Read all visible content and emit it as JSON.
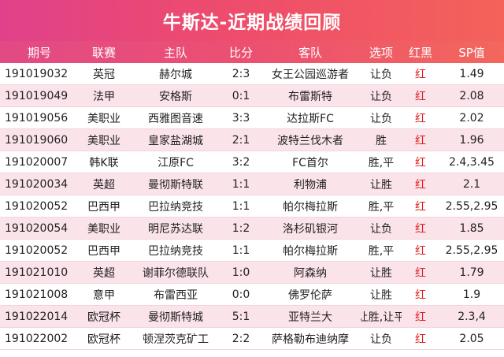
{
  "title": "牛斯达-近期战绩回顾",
  "columns": [
    "期号",
    "联赛",
    "主队",
    "比分",
    "客队",
    "选项",
    "红黑",
    "SP值"
  ],
  "rows": [
    [
      "191019032",
      "英冠",
      "赫尔城",
      "2:3",
      "女王公园巡游者",
      "让负",
      "红",
      "1.49"
    ],
    [
      "191019049",
      "法甲",
      "安格斯",
      "0:1",
      "布雷斯特",
      "让负",
      "红",
      "2.08"
    ],
    [
      "191019056",
      "美职业",
      "西雅图音速",
      "3:3",
      "达拉斯FC",
      "让负",
      "红",
      "2.02"
    ],
    [
      "191019060",
      "美职业",
      "皇家盐湖城",
      "2:1",
      "波特兰伐木者",
      "胜",
      "红",
      "1.96"
    ],
    [
      "191020007",
      "韩K联",
      "江原FC",
      "3:2",
      "FC首尔",
      "胜,平",
      "红",
      "2.4,3.45"
    ],
    [
      "191020034",
      "英超",
      "曼彻斯特联",
      "1:1",
      "利物浦",
      "让胜",
      "红",
      "2.1"
    ],
    [
      "191020052",
      "巴西甲",
      "巴拉纳竞技",
      "1:1",
      "帕尔梅拉斯",
      "胜,平",
      "红",
      "2.55,2.95"
    ],
    [
      "191020054",
      "美职业",
      "明尼苏达联",
      "1:2",
      "洛杉矶银河",
      "让负",
      "红",
      "1.85"
    ],
    [
      "191020052",
      "巴西甲",
      "巴拉纳竞技",
      "1:1",
      "帕尔梅拉斯",
      "胜,平",
      "红",
      "2.55,2.95"
    ],
    [
      "191021010",
      "英超",
      "谢菲尔德联队",
      "1:0",
      "阿森纳",
      "让胜",
      "红",
      "1.79"
    ],
    [
      "191021008",
      "意甲",
      "布雷西亚",
      "0:0",
      "佛罗伦萨",
      "让胜",
      "红",
      "1.9"
    ],
    [
      "191022014",
      "欧冠杯",
      "曼彻斯特城",
      "5:1",
      "亚特兰大",
      "让胜,让平",
      "红",
      "2.3,4"
    ],
    [
      "191022002",
      "欧冠杯",
      "顿涅茨克矿工",
      "2:2",
      "萨格勒布迪纳摩",
      "让负",
      "红",
      "2.05"
    ]
  ]
}
